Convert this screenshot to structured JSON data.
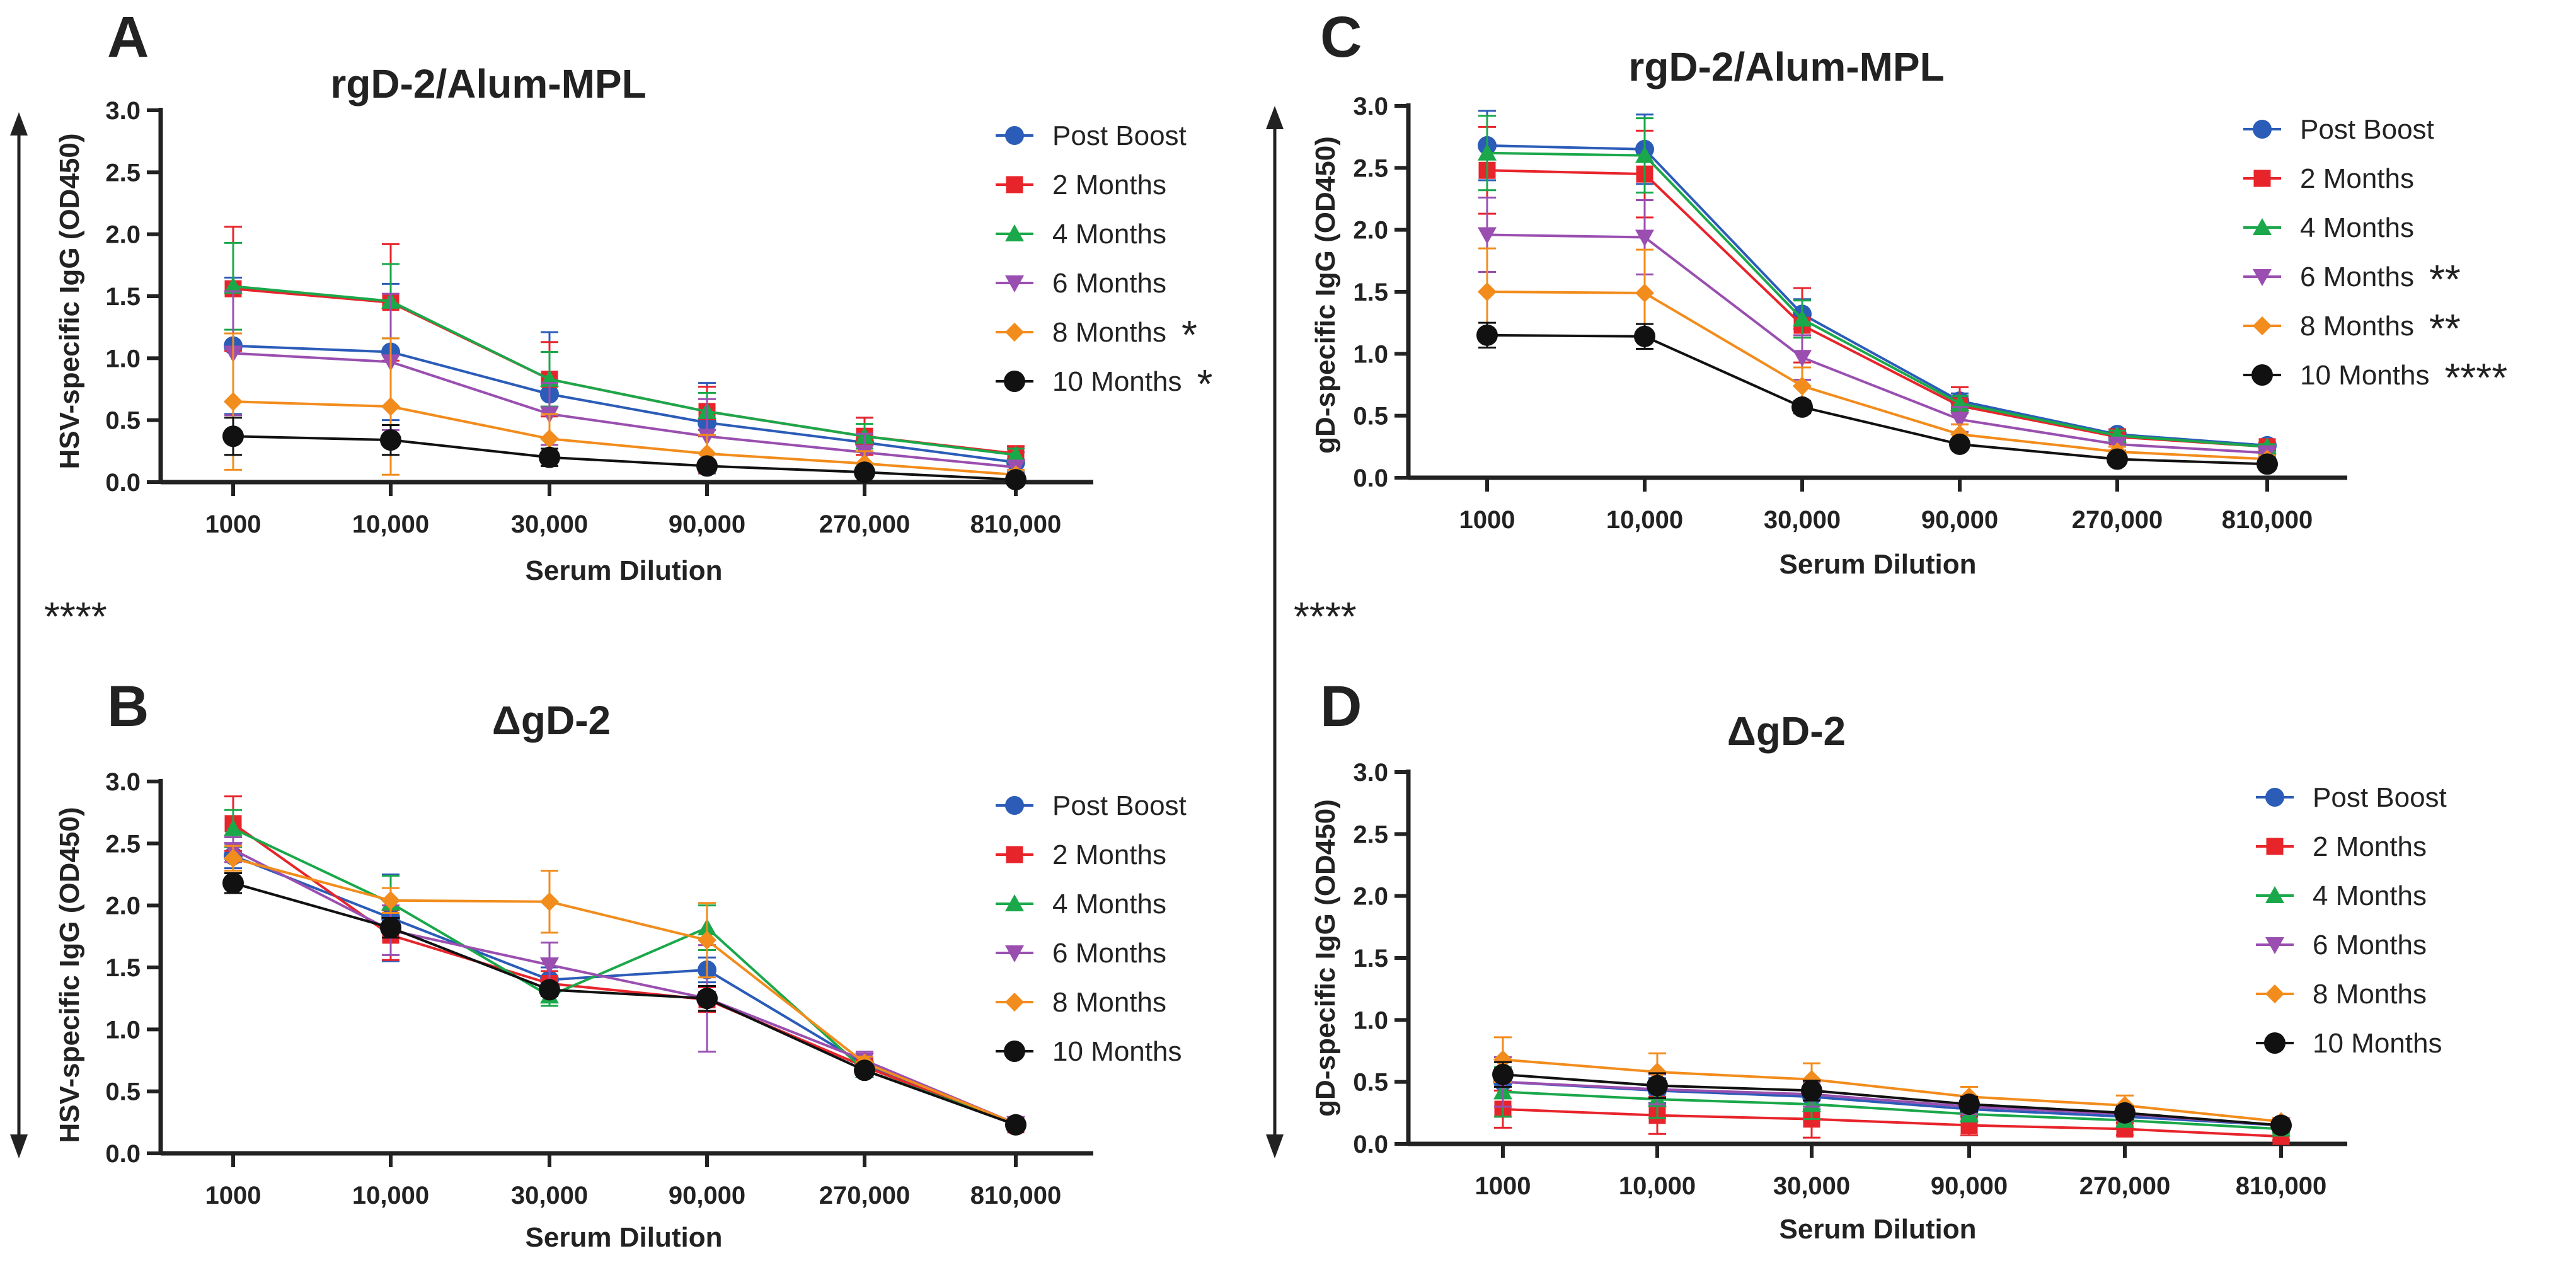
{
  "figure": {
    "left_bracket_sig": "****",
    "right_bracket_sig": "****"
  },
  "chart_data": [
    {
      "panel": "A",
      "title": "rgD-2/Alum-MPL",
      "type": "line",
      "xlabel": "Serum Dilution",
      "ylabel": "HSV-specific IgG (OD450)",
      "categories": [
        "1000",
        "10,000",
        "30,000",
        "90,000",
        "270,000",
        "810,000"
      ],
      "ylim": [
        0,
        3.0
      ],
      "yticks": [
        "0.0",
        "0.5",
        "1.0",
        "1.5",
        "2.0",
        "2.5",
        "3.0"
      ],
      "series": [
        {
          "name": "Post Boost",
          "color": "#2b5cb8",
          "marker": "circle",
          "sig": "",
          "values": [
            1.1,
            1.05,
            0.71,
            0.48,
            0.32,
            0.16
          ],
          "errors": [
            0.55,
            0.55,
            0.5,
            0.32,
            0.2,
            0.08
          ]
        },
        {
          "name": "2 Months",
          "color": "#e8242b",
          "marker": "square",
          "sig": "",
          "values": [
            1.56,
            1.45,
            0.83,
            0.57,
            0.37,
            0.23
          ],
          "errors": [
            0.5,
            0.47,
            0.3,
            0.2,
            0.15,
            0.06
          ]
        },
        {
          "name": "4 Months",
          "color": "#1aa84a",
          "marker": "triangle-up",
          "sig": "",
          "values": [
            1.58,
            1.46,
            0.83,
            0.57,
            0.37,
            0.22
          ],
          "errors": [
            0.35,
            0.3,
            0.22,
            0.15,
            0.1,
            0.05
          ]
        },
        {
          "name": "6 Months",
          "color": "#9a4fb0",
          "marker": "triangle-down",
          "sig": "",
          "values": [
            1.04,
            0.97,
            0.55,
            0.37,
            0.24,
            0.12
          ],
          "errors": [
            0.5,
            0.55,
            0.25,
            0.3,
            0.15,
            0.05
          ]
        },
        {
          "name": "8 Months",
          "color": "#f28c1c",
          "marker": "diamond",
          "sig": "*",
          "values": [
            0.65,
            0.61,
            0.35,
            0.23,
            0.15,
            0.06
          ],
          "errors": [
            0.55,
            0.55,
            0.2,
            0.15,
            0.1,
            0.04
          ]
        },
        {
          "name": "10 Months",
          "color": "#111111",
          "marker": "circle",
          "sig": "*",
          "values": [
            0.37,
            0.34,
            0.2,
            0.13,
            0.08,
            0.02
          ],
          "errors": [
            0.15,
            0.12,
            0.07,
            0.04,
            0.03,
            0.01
          ]
        }
      ]
    },
    {
      "panel": "B",
      "title": "ΔgD-2",
      "type": "line",
      "xlabel": "Serum Dilution",
      "ylabel": "HSV-specific IgG (OD450)",
      "categories": [
        "1000",
        "10,000",
        "30,000",
        "90,000",
        "270,000",
        "810,000"
      ],
      "ylim": [
        0,
        3.0
      ],
      "yticks": [
        "0.0",
        "0.5",
        "1.0",
        "1.5",
        "2.0",
        "2.5",
        "3.0"
      ],
      "series": [
        {
          "name": "Post Boost",
          "color": "#2b5cb8",
          "marker": "circle",
          "sig": "",
          "values": [
            2.4,
            1.9,
            1.4,
            1.48,
            0.72,
            0.24
          ],
          "errors": [
            0.1,
            0.35,
            0.1,
            0.1,
            0.05,
            0.03
          ]
        },
        {
          "name": "2 Months",
          "color": "#e8242b",
          "marker": "square",
          "sig": "",
          "values": [
            2.66,
            1.76,
            1.37,
            1.24,
            0.7,
            0.23
          ],
          "errors": [
            0.22,
            0.2,
            0.1,
            0.1,
            0.05,
            0.03
          ]
        },
        {
          "name": "4 Months",
          "color": "#1aa84a",
          "marker": "triangle-up",
          "sig": "",
          "values": [
            2.62,
            2.02,
            1.27,
            1.82,
            0.67,
            0.24
          ],
          "errors": [
            0.15,
            0.22,
            0.08,
            0.18,
            0.05,
            0.03
          ]
        },
        {
          "name": "6 Months",
          "color": "#9a4fb0",
          "marker": "triangle-down",
          "sig": "",
          "values": [
            2.45,
            1.8,
            1.52,
            1.25,
            0.75,
            0.24
          ],
          "errors": [
            0.1,
            0.2,
            0.18,
            0.43,
            0.07,
            0.03
          ]
        },
        {
          "name": "8 Months",
          "color": "#f28c1c",
          "marker": "diamond",
          "sig": "",
          "values": [
            2.38,
            2.04,
            2.03,
            1.72,
            0.73,
            0.24
          ],
          "errors": [
            0.1,
            0.1,
            0.25,
            0.3,
            0.05,
            0.03
          ]
        },
        {
          "name": "10 Months",
          "color": "#111111",
          "marker": "circle",
          "sig": "",
          "values": [
            2.18,
            1.82,
            1.32,
            1.25,
            0.67,
            0.23
          ],
          "errors": [
            0.08,
            0.08,
            0.05,
            0.1,
            0.04,
            0.02
          ]
        }
      ]
    },
    {
      "panel": "C",
      "title": "rgD-2/Alum-MPL",
      "type": "line",
      "xlabel": "Serum Dilution",
      "ylabel": "gD-specific IgG (OD450)",
      "categories": [
        "1000",
        "10,000",
        "30,000",
        "90,000",
        "270,000",
        "810,000"
      ],
      "ylim": [
        0,
        3.0
      ],
      "yticks": [
        "0.0",
        "0.5",
        "1.0",
        "1.5",
        "2.0",
        "2.5",
        "3.0"
      ],
      "series": [
        {
          "name": "Post Boost",
          "color": "#2b5cb8",
          "marker": "circle",
          "sig": "",
          "values": [
            2.68,
            2.65,
            1.32,
            0.62,
            0.35,
            0.26
          ],
          "errors": [
            0.28,
            0.28,
            0.12,
            0.06,
            0.04,
            0.02
          ]
        },
        {
          "name": "2 Months",
          "color": "#e8242b",
          "marker": "square",
          "sig": "",
          "values": [
            2.48,
            2.45,
            1.23,
            0.58,
            0.33,
            0.25
          ],
          "errors": [
            0.35,
            0.35,
            0.3,
            0.15,
            0.05,
            0.03
          ]
        },
        {
          "name": "4 Months",
          "color": "#1aa84a",
          "marker": "triangle-up",
          "sig": "",
          "values": [
            2.62,
            2.6,
            1.28,
            0.6,
            0.34,
            0.25
          ],
          "errors": [
            0.3,
            0.3,
            0.15,
            0.06,
            0.04,
            0.02
          ]
        },
        {
          "name": "6 Months",
          "color": "#9a4fb0",
          "marker": "triangle-down",
          "sig": "**",
          "values": [
            1.96,
            1.94,
            0.97,
            0.47,
            0.27,
            0.2
          ],
          "errors": [
            0.3,
            0.3,
            0.18,
            0.1,
            0.05,
            0.03
          ]
        },
        {
          "name": "8 Months",
          "color": "#f28c1c",
          "marker": "diamond",
          "sig": "**",
          "values": [
            1.5,
            1.49,
            0.74,
            0.35,
            0.21,
            0.15
          ],
          "errors": [
            0.35,
            0.35,
            0.15,
            0.08,
            0.04,
            0.03
          ]
        },
        {
          "name": "10 Months",
          "color": "#111111",
          "marker": "circle",
          "sig": "****",
          "values": [
            1.15,
            1.14,
            0.57,
            0.27,
            0.15,
            0.11
          ],
          "errors": [
            0.1,
            0.1,
            0.05,
            0.03,
            0.02,
            0.02
          ]
        }
      ]
    },
    {
      "panel": "D",
      "title": "ΔgD-2",
      "type": "line",
      "xlabel": "Serum Dilution",
      "ylabel": "gD-specific IgG (OD450)",
      "categories": [
        "1000",
        "10,000",
        "30,000",
        "90,000",
        "270,000",
        "810,000"
      ],
      "ylim": [
        0,
        3.0
      ],
      "yticks": [
        "0.0",
        "0.5",
        "1.0",
        "1.5",
        "2.0",
        "2.5",
        "3.0"
      ],
      "series": [
        {
          "name": "Post Boost",
          "color": "#2b5cb8",
          "marker": "circle",
          "sig": "",
          "values": [
            0.5,
            0.43,
            0.38,
            0.28,
            0.22,
            0.15
          ],
          "errors": [
            0.2,
            0.1,
            0.1,
            0.06,
            0.05,
            0.03
          ]
        },
        {
          "name": "2 Months",
          "color": "#e8242b",
          "marker": "square",
          "sig": "",
          "values": [
            0.28,
            0.23,
            0.2,
            0.15,
            0.12,
            0.06
          ],
          "errors": [
            0.15,
            0.15,
            0.15,
            0.08,
            0.05,
            0.03
          ]
        },
        {
          "name": "4 Months",
          "color": "#1aa84a",
          "marker": "triangle-up",
          "sig": "",
          "values": [
            0.42,
            0.36,
            0.32,
            0.24,
            0.19,
            0.12
          ],
          "errors": [
            0.2,
            0.15,
            0.12,
            0.06,
            0.05,
            0.03
          ]
        },
        {
          "name": "6 Months",
          "color": "#9a4fb0",
          "marker": "triangle-down",
          "sig": "",
          "values": [
            0.5,
            0.44,
            0.4,
            0.3,
            0.24,
            0.15
          ],
          "errors": [
            0.2,
            0.12,
            0.1,
            0.06,
            0.05,
            0.03
          ]
        },
        {
          "name": "8 Months",
          "color": "#f28c1c",
          "marker": "diamond",
          "sig": "",
          "values": [
            0.68,
            0.58,
            0.52,
            0.38,
            0.31,
            0.18
          ],
          "errors": [
            0.18,
            0.15,
            0.13,
            0.08,
            0.08,
            0.03
          ]
        },
        {
          "name": "10 Months",
          "color": "#111111",
          "marker": "circle",
          "sig": "",
          "values": [
            0.56,
            0.47,
            0.43,
            0.32,
            0.25,
            0.15
          ],
          "errors": [
            0.1,
            0.1,
            0.08,
            0.06,
            0.05,
            0.03
          ]
        }
      ]
    }
  ]
}
